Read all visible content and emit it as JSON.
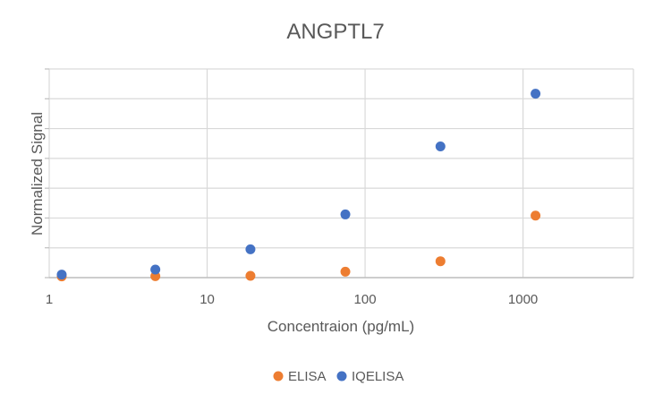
{
  "chart_data": {
    "type": "scatter",
    "title": "ANGPTL7",
    "xlabel": "Concentraion (pg/mL)",
    "ylabel": "Normalized Signal",
    "x_scale": "log",
    "xlim": [
      1,
      5000
    ],
    "ylim": [
      0,
      7
    ],
    "x_ticks": [
      1,
      10,
      100,
      1000
    ],
    "x_tick_labels": [
      "1",
      "10",
      "100",
      "1000"
    ],
    "y_tick_labels_visible": false,
    "grid": true,
    "legend_position": "bottom",
    "series": [
      {
        "name": "ELISA",
        "color": "#ED7D31",
        "points": [
          {
            "x": 1.2,
            "y": 0.04
          },
          {
            "x": 4.7,
            "y": 0.05
          },
          {
            "x": 18.8,
            "y": 0.06
          },
          {
            "x": 75,
            "y": 0.2
          },
          {
            "x": 300,
            "y": 0.55
          },
          {
            "x": 1200,
            "y": 2.08
          }
        ]
      },
      {
        "name": "IQELISA",
        "color": "#4472C4",
        "points": [
          {
            "x": 1.2,
            "y": 0.1
          },
          {
            "x": 4.7,
            "y": 0.27
          },
          {
            "x": 18.8,
            "y": 0.95
          },
          {
            "x": 75,
            "y": 2.12
          },
          {
            "x": 300,
            "y": 4.4
          },
          {
            "x": 1200,
            "y": 6.17
          }
        ]
      }
    ]
  }
}
